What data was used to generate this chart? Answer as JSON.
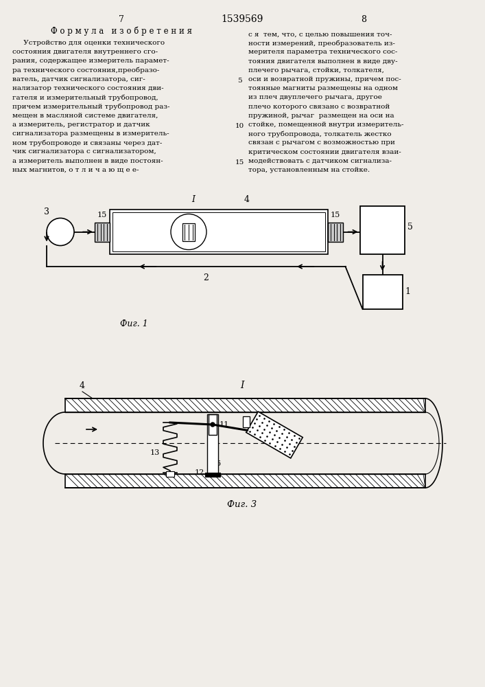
{
  "page_number_left": "7",
  "page_number_center": "1539569",
  "page_number_right": "8",
  "formula_title": "Ф о р м у л а   и з о б р е т е н и я",
  "text_left_lines": [
    "     Устройство для оценки технического",
    "состояния двигателя внутреннего сго-",
    "рания, содержащее измеритель парамет-",
    "ра технического состояния,преобразо-",
    "ватель, датчик сигнализатора, сиг-",
    "нализатор технического состояния дви-",
    "гателя и измерительный трубопровод,",
    "причем измерительный трубопровод раз-",
    "мещен в масляной системе двигателя,",
    "а измеритель, регистратор и датчик",
    "сигнализатора размещены в измеритель-",
    "ном трубопроводе и связаны через дат-",
    "чик сигнализатора с сигнализатором,",
    "а измеритель выполнен в виде постоян-",
    "ных магнитов, о т л и ч а ю щ е е-"
  ],
  "text_right_lines": [
    "с я  тем, что, с целью повышения точ-",
    "ности измерений, преобразователь из-",
    "мерителя параметра технического сос-",
    "тояния двигателя выполнен в виде дву-",
    "плечего рычага, стойки, толкателя,",
    "оси и возвратной пружины, причем пос-",
    "тоянные магниты размещены на одном",
    "из плеч двуплечего рычага, другое",
    "плечо которого связано с возвратной",
    "пружиной, рычаг  размещен на оси на",
    "стойке, помещенной внутри измеритель-",
    "ного трубопровода, толкатель жестко",
    "связан с рычагом с возможностью при",
    "критическом состоянии двигателя взаи-",
    "модействовать с датчиком сигнализа-",
    "тора, установленным на стойке."
  ],
  "line_nums": [
    [
      5,
      4
    ],
    [
      10,
      9
    ],
    [
      15,
      13
    ]
  ],
  "fig1_label": "Фиг. 1",
  "fig3_label": "Фиг. 3",
  "bg_color": "#f0ede8"
}
